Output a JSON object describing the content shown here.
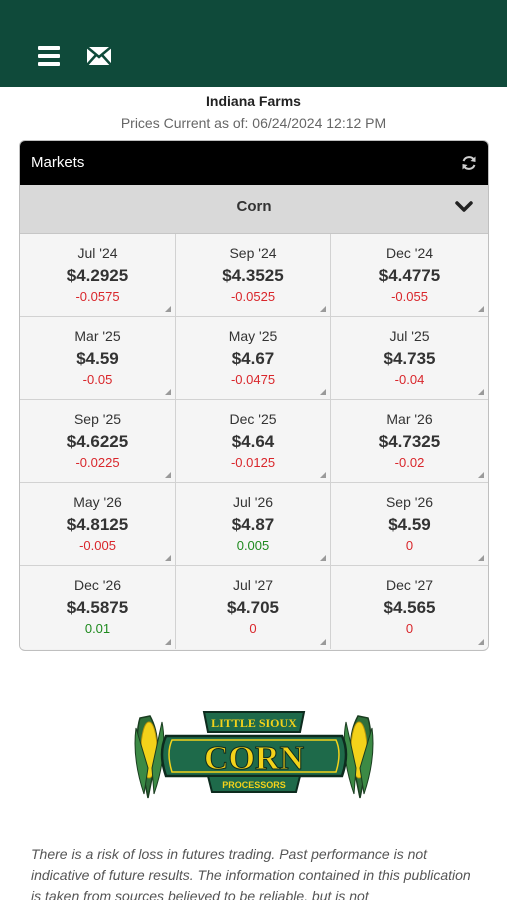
{
  "header": {
    "menu_icon": "hamburger-menu-icon",
    "mail_icon": "envelope-icon"
  },
  "company": {
    "name": "Indiana Farms",
    "as_of": "Prices Current as of: 06/24/2024 12:12 PM"
  },
  "markets": {
    "title": "Markets",
    "refresh_icon": "refresh-icon",
    "commodity": "Corn",
    "dropdown_icon": "chevron-down-icon",
    "contracts": [
      {
        "month": "Jul '24",
        "price": "$4.2925",
        "change": "-0.0575",
        "dir": "neg"
      },
      {
        "month": "Sep '24",
        "price": "$4.3525",
        "change": "-0.0525",
        "dir": "neg"
      },
      {
        "month": "Dec '24",
        "price": "$4.4775",
        "change": "-0.055",
        "dir": "neg"
      },
      {
        "month": "Mar '25",
        "price": "$4.59",
        "change": "-0.05",
        "dir": "neg"
      },
      {
        "month": "May '25",
        "price": "$4.67",
        "change": "-0.0475",
        "dir": "neg"
      },
      {
        "month": "Jul '25",
        "price": "$4.735",
        "change": "-0.04",
        "dir": "neg"
      },
      {
        "month": "Sep '25",
        "price": "$4.6225",
        "change": "-0.0225",
        "dir": "neg"
      },
      {
        "month": "Dec '25",
        "price": "$4.64",
        "change": "-0.0125",
        "dir": "neg"
      },
      {
        "month": "Mar '26",
        "price": "$4.7325",
        "change": "-0.02",
        "dir": "neg"
      },
      {
        "month": "May '26",
        "price": "$4.8125",
        "change": "-0.005",
        "dir": "neg"
      },
      {
        "month": "Jul '26",
        "price": "$4.87",
        "change": "0.005",
        "dir": "pos"
      },
      {
        "month": "Sep '26",
        "price": "$4.59",
        "change": "0",
        "dir": "neg"
      },
      {
        "month": "Dec '26",
        "price": "$4.5875",
        "change": "0.01",
        "dir": "pos"
      },
      {
        "month": "Jul '27",
        "price": "$4.705",
        "change": "0",
        "dir": "neg"
      },
      {
        "month": "Dec '27",
        "price": "$4.565",
        "change": "0",
        "dir": "neg"
      }
    ]
  },
  "logo": {
    "top_text": "LITTLE SIOUX",
    "main_text": "CORN",
    "bottom_text": "PROCESSORS"
  },
  "disclaimer": "There is a risk of loss in futures trading. Past performance is not indicative of future results. The information contained in this publication is taken from sources believed to be reliable, but is not",
  "colors": {
    "header_bg": "#0f4a3a",
    "negative": "#d9262b",
    "positive": "#1e8a1e"
  }
}
